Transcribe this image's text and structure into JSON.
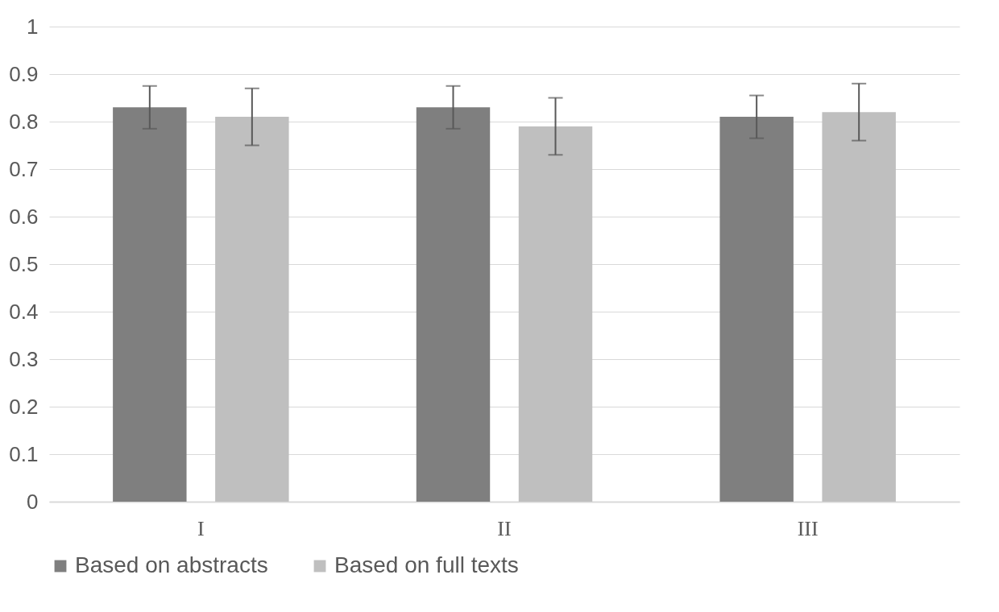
{
  "chart_data": {
    "type": "bar",
    "categories": [
      "I",
      "II",
      "III"
    ],
    "series": [
      {
        "name": "Based on abstracts",
        "color": "#7f7f7f",
        "values": [
          0.83,
          0.83,
          0.81
        ],
        "errors": [
          0.045,
          0.045,
          0.045
        ]
      },
      {
        "name": "Based on full texts",
        "color": "#bfbfbf",
        "values": [
          0.81,
          0.79,
          0.82
        ],
        "errors": [
          0.06,
          0.06,
          0.06
        ]
      }
    ],
    "ylim": [
      0,
      1
    ],
    "yticks": [
      0,
      0.1,
      0.2,
      0.3,
      0.4,
      0.5,
      0.6,
      0.7,
      0.8,
      0.9,
      1
    ],
    "grid": "y",
    "legend": "bottom"
  }
}
